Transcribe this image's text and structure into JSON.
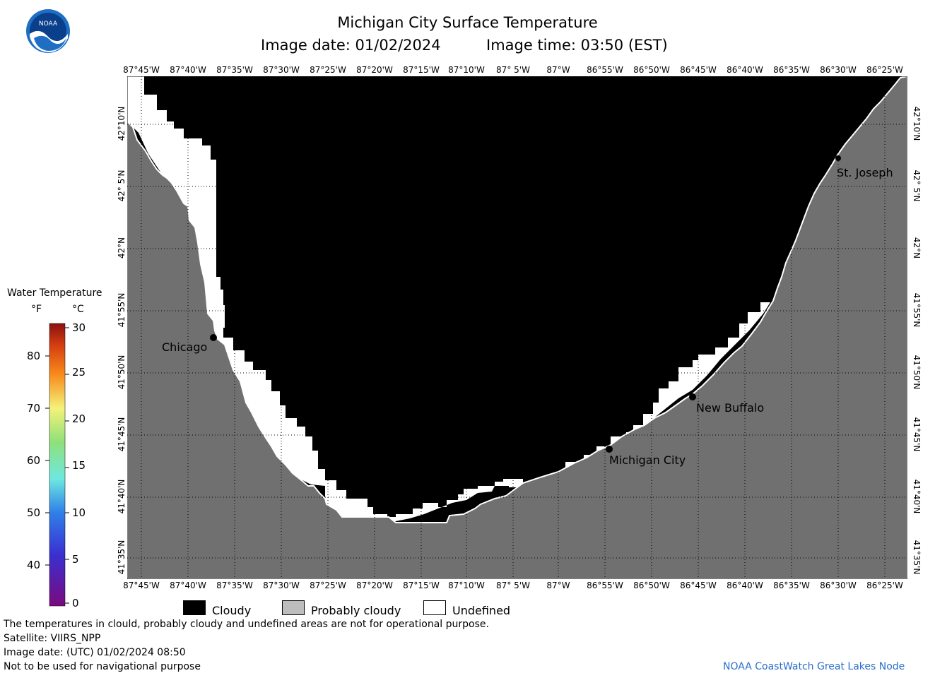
{
  "header": {
    "title": "Michigan City Surface Temperature",
    "image_date": "Image date: 01/02/2024",
    "image_time": "Image time: 03:50 (EST)"
  },
  "logo": {
    "text": "NOAA",
    "icon": "noaa-logo-icon"
  },
  "map": {
    "lon_labels": [
      "87°45'W",
      "87°40'W",
      "87°35'W",
      "87°30'W",
      "87°25'W",
      "87°20'W",
      "87°15'W",
      "87°10'W",
      "87° 5'W",
      "87°W",
      "86°55'W",
      "86°50'W",
      "86°45'W",
      "86°40'W",
      "86°35'W",
      "86°30'W",
      "86°25'W"
    ],
    "lat_labels": [
      "42°10'N",
      "42° 5'N",
      "42°N",
      "41°55'N",
      "41°50'N",
      "41°45'N",
      "41°40'N",
      "41°35'N"
    ],
    "places": [
      {
        "name": "Chicago"
      },
      {
        "name": "Michigan City"
      },
      {
        "name": "New Buffalo"
      },
      {
        "name": "St. Joseph"
      }
    ],
    "colors": {
      "land": "#707070",
      "cloudy": "#000000",
      "undefined": "#ffffff"
    }
  },
  "color_scale": {
    "title": "Water Temperature",
    "unit_f": "°F",
    "unit_c": "°C",
    "f_ticks": [
      "80",
      "70",
      "60",
      "50",
      "40"
    ],
    "c_ticks": [
      "30",
      "25",
      "20",
      "15",
      "10",
      "5",
      "0"
    ]
  },
  "legend": {
    "items": [
      {
        "label": "Cloudy",
        "color": "#000000"
      },
      {
        "label": "Probably cloudy",
        "color": "#bdbdbd"
      },
      {
        "label": "Undefined",
        "color": "#ffffff"
      }
    ]
  },
  "footer": {
    "note": "The temperatures in clould, probably cloudy and undefined areas are not for operational purpose.",
    "satellite": "Satellite: VIIRS_NPP",
    "utc_date": "Image date: (UTC) 01/02/2024  08:50",
    "warning": "Not to be used for navigational purpose",
    "credit": "NOAA CoastWatch Great Lakes Node"
  }
}
